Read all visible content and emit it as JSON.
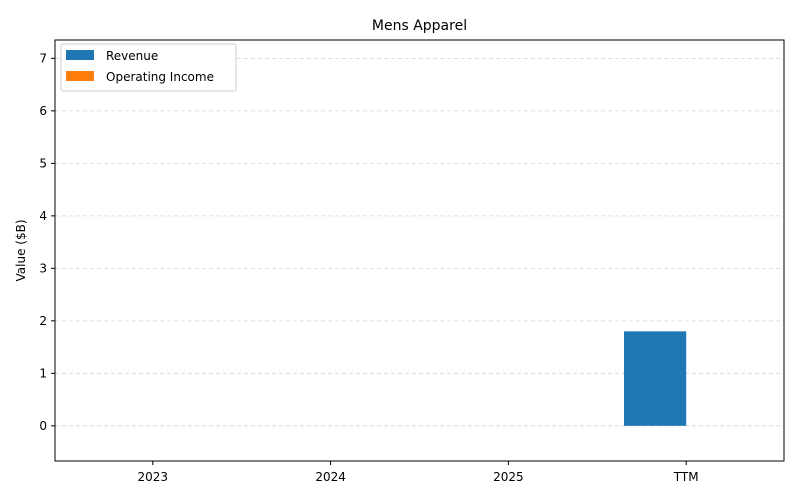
{
  "chart_data": {
    "type": "bar",
    "title": "Mens Apparel",
    "xlabel": "",
    "ylabel": "Value ($B)",
    "categories": [
      "2023",
      "2024",
      "2025",
      "TTM"
    ],
    "series": [
      {
        "name": "Revenue",
        "values": [
          0,
          0,
          0,
          1.8
        ],
        "color": "#1f77b4"
      },
      {
        "name": "Operating Income",
        "values": [
          0,
          0,
          0,
          0
        ],
        "color": "#ff7f0e"
      }
    ],
    "ylim": [
      -0.67,
      7.35
    ],
    "yticks": [
      0,
      1,
      2,
      3,
      4,
      5,
      6,
      7
    ],
    "grid": "y-dashed",
    "legend_position": "top-left"
  }
}
